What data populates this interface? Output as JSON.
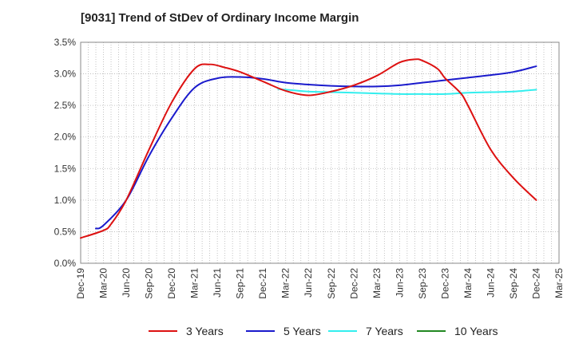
{
  "chart_data": {
    "type": "line",
    "title": "[9031]  Trend of StDev of Ordinary Income Margin",
    "xlabel": "",
    "ylabel": "",
    "x_ticks": [
      "Dec-19",
      "Mar-20",
      "Jun-20",
      "Sep-20",
      "Dec-20",
      "Mar-21",
      "Jun-21",
      "Sep-21",
      "Dec-21",
      "Mar-22",
      "Jun-22",
      "Sep-22",
      "Dec-22",
      "Mar-23",
      "Jun-23",
      "Sep-23",
      "Dec-23",
      "Mar-24",
      "Jun-24",
      "Sep-24",
      "Dec-24",
      "Mar-25"
    ],
    "y_ticks": [
      "0.0%",
      "0.5%",
      "1.0%",
      "1.5%",
      "2.0%",
      "2.5%",
      "3.0%",
      "3.5%"
    ],
    "ylim": [
      0,
      3.5
    ],
    "y_unit": "%",
    "grid": true,
    "legend_position": "bottom",
    "series": [
      {
        "name": "3 Years",
        "color": "#dd1111",
        "points": [
          [
            "Dec-19",
            0.4
          ],
          [
            "Mar-20",
            0.52
          ],
          [
            "Apr-20",
            0.62
          ],
          [
            "Jun-20",
            1.0
          ],
          [
            "Sep-20",
            1.8
          ],
          [
            "Dec-20",
            2.55
          ],
          [
            "Mar-21",
            3.08
          ],
          [
            "May-21",
            3.15
          ],
          [
            "Jul-21",
            3.1
          ],
          [
            "Sep-21",
            3.03
          ],
          [
            "Dec-21",
            2.88
          ],
          [
            "Mar-22",
            2.73
          ],
          [
            "Jun-22",
            2.66
          ],
          [
            "Sep-22",
            2.72
          ],
          [
            "Dec-22",
            2.82
          ],
          [
            "Mar-23",
            2.97
          ],
          [
            "Jun-23",
            3.18
          ],
          [
            "Aug-23",
            3.23
          ],
          [
            "Sep-23",
            3.21
          ],
          [
            "Nov-23",
            3.08
          ],
          [
            "Dec-23",
            2.93
          ],
          [
            "Feb-24",
            2.7
          ],
          [
            "Mar-24",
            2.5
          ],
          [
            "Jun-24",
            1.8
          ],
          [
            "Sep-24",
            1.35
          ],
          [
            "Dec-24",
            1.0
          ]
        ]
      },
      {
        "name": "5 Years",
        "color": "#1a1acc",
        "points": [
          [
            "Feb-20",
            0.55
          ],
          [
            "Mar-20",
            0.6
          ],
          [
            "Jun-20",
            1.0
          ],
          [
            "Sep-20",
            1.7
          ],
          [
            "Dec-20",
            2.3
          ],
          [
            "Mar-21",
            2.78
          ],
          [
            "Jun-21",
            2.93
          ],
          [
            "Sep-21",
            2.95
          ],
          [
            "Dec-21",
            2.92
          ],
          [
            "Mar-22",
            2.86
          ],
          [
            "Jun-22",
            2.83
          ],
          [
            "Sep-22",
            2.81
          ],
          [
            "Dec-22",
            2.8
          ],
          [
            "Mar-23",
            2.8
          ],
          [
            "Jun-23",
            2.82
          ],
          [
            "Sep-23",
            2.86
          ],
          [
            "Dec-23",
            2.9
          ],
          [
            "Mar-24",
            2.94
          ],
          [
            "Jun-24",
            2.98
          ],
          [
            "Sep-24",
            3.03
          ],
          [
            "Dec-24",
            3.12
          ]
        ]
      },
      {
        "name": "7 Years",
        "color": "#33eeee",
        "points": [
          [
            "Feb-22",
            2.76
          ],
          [
            "Apr-22",
            2.74
          ],
          [
            "Jun-22",
            2.72
          ],
          [
            "Sep-22",
            2.71
          ],
          [
            "Dec-22",
            2.7
          ],
          [
            "Mar-23",
            2.69
          ],
          [
            "Jun-23",
            2.68
          ],
          [
            "Sep-23",
            2.68
          ],
          [
            "Dec-23",
            2.68
          ],
          [
            "Mar-24",
            2.7
          ],
          [
            "Jun-24",
            2.71
          ],
          [
            "Sep-24",
            2.72
          ],
          [
            "Dec-24",
            2.75
          ]
        ]
      },
      {
        "name": "10 Years",
        "color": "#228822",
        "points": []
      }
    ]
  }
}
